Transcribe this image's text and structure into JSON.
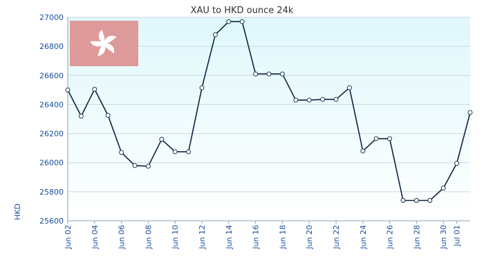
{
  "chart_data": {
    "type": "line",
    "title": "XAU to HKD ounce 24k",
    "ylabel": "HKD",
    "xlabel": "",
    "ylim": [
      25600,
      27000
    ],
    "yticks": [
      25600,
      25800,
      26000,
      26200,
      26400,
      26600,
      26800,
      27000
    ],
    "grid": true,
    "legend": "none",
    "colors": {
      "line": "#0b2340",
      "marker_fill": "#ffffff",
      "marker_stroke": "#0b2340",
      "plot_bg_top": "#dff8fb",
      "plot_bg_bottom": "#ffffff",
      "flag_red": "#de9a9a",
      "flag_white": "#ffffff"
    },
    "flag_icon": "hong-kong-flag-icon",
    "x_tick_labels": [
      "Jun 02",
      "Jun 04",
      "Jun 06",
      "Jun 08",
      "Jun 10",
      "Jun 12",
      "Jun 14",
      "Jun 16",
      "Jun 18",
      "Jun 20",
      "Jun 22",
      "Jun 24",
      "Jun 26",
      "Jun 28",
      "Jun 30",
      "Jul 01"
    ],
    "x": [
      "Jun 02",
      "Jun 03",
      "Jun 04",
      "Jun 05",
      "Jun 06",
      "Jun 07",
      "Jun 08",
      "Jun 09",
      "Jun 10",
      "Jun 11",
      "Jun 12",
      "Jun 13",
      "Jun 14",
      "Jun 15",
      "Jun 16",
      "Jun 17",
      "Jun 18",
      "Jun 19",
      "Jun 20",
      "Jun 21",
      "Jun 22",
      "Jun 23",
      "Jun 24",
      "Jun 25",
      "Jun 26",
      "Jun 27",
      "Jun 28",
      "Jun 29",
      "Jun 30",
      "Jul 01",
      "Jul 02"
    ],
    "series": [
      {
        "values": [
          26500,
          26320,
          26505,
          26325,
          26070,
          25980,
          25975,
          26160,
          26075,
          26075,
          26515,
          26880,
          26970,
          26970,
          26610,
          26610,
          26610,
          26430,
          26430,
          26435,
          26435,
          26515,
          26080,
          26165,
          26165,
          25740,
          25740,
          25740,
          25825,
          25995,
          26345
        ]
      }
    ]
  }
}
